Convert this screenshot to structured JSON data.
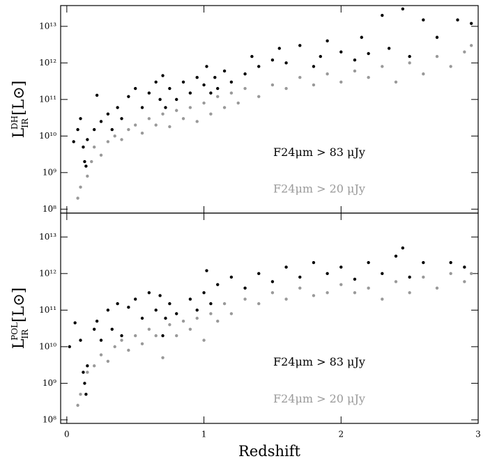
{
  "chart_data": [
    {
      "type": "scatter",
      "log_y": true,
      "xtick_labels": false,
      "ylabel": {
        "base": "L",
        "sub": "IR",
        "sup": "DH",
        "unit": "[L⊙]"
      },
      "xlim": [
        -0.045,
        3
      ],
      "xticks": [
        0,
        1,
        2,
        3
      ],
      "ylim": [
        78000000.0,
        37000000000000.0
      ],
      "yticks": [
        {
          "value": 100000000.0,
          "label": "10⁸"
        },
        {
          "value": 1000000000.0,
          "label": "10⁹"
        },
        {
          "value": 10000000000.0,
          "label": "10¹⁰"
        },
        {
          "value": 100000000000.0,
          "label": "10¹¹"
        },
        {
          "value": 1000000000000.0,
          "label": "10¹²"
        },
        {
          "value": 10000000000000.0,
          "label": "10¹³"
        }
      ],
      "series": [
        {
          "name": "F24μm > 83 μJy",
          "color": "#000000",
          "x": [
            0.05,
            0.08,
            0.1,
            0.12,
            0.13,
            0.14,
            0.15,
            0.2,
            0.22,
            0.25,
            0.3,
            0.33,
            0.37,
            0.4,
            0.45,
            0.5,
            0.55,
            0.6,
            0.65,
            0.68,
            0.7,
            0.72,
            0.75,
            0.8,
            0.85,
            0.9,
            0.95,
            1.0,
            1.02,
            1.05,
            1.08,
            1.1,
            1.15,
            1.2,
            1.3,
            1.35,
            1.4,
            1.5,
            1.55,
            1.6,
            1.7,
            1.8,
            1.85,
            1.9,
            2.0,
            2.1,
            2.15,
            2.2,
            2.3,
            2.35,
            2.45,
            2.5,
            2.6,
            2.7,
            2.85,
            2.95
          ],
          "values": [
            7000000000.0,
            15000000000.0,
            30000000000.0,
            5000000000.0,
            2000000000.0,
            1500000000.0,
            8000000000.0,
            15000000000.0,
            130000000000.0,
            25000000000.0,
            40000000000.0,
            15000000000.0,
            60000000000.0,
            30000000000.0,
            120000000000.0,
            200000000000.0,
            60000000000.0,
            150000000000.0,
            300000000000.0,
            100000000000.0,
            450000000000.0,
            60000000000.0,
            200000000000.0,
            100000000000.0,
            300000000000.0,
            150000000000.0,
            400000000000.0,
            250000000000.0,
            800000000000.0,
            150000000000.0,
            400000000000.0,
            200000000000.0,
            600000000000.0,
            300000000000.0,
            500000000000.0,
            1500000000000.0,
            800000000000.0,
            1200000000000.0,
            2500000000000.0,
            1000000000000.0,
            3000000000000.0,
            800000000000.0,
            1500000000000.0,
            4000000000000.0,
            2000000000000.0,
            1200000000000.0,
            5000000000000.0,
            1800000000000.0,
            20000000000000.0,
            2500000000000.0,
            30000000000000.0,
            1500000000000.0,
            15000000000000.0,
            5000000000000.0,
            15000000000000.0,
            12000000000000.0
          ]
        },
        {
          "name": "F24μm > 20 μJy",
          "color": "#999999",
          "x": [
            0.08,
            0.1,
            0.15,
            0.18,
            0.2,
            0.25,
            0.3,
            0.35,
            0.4,
            0.45,
            0.5,
            0.55,
            0.6,
            0.65,
            0.7,
            0.75,
            0.8,
            0.85,
            0.9,
            0.95,
            1.0,
            1.05,
            1.1,
            1.15,
            1.2,
            1.25,
            1.3,
            1.4,
            1.5,
            1.6,
            1.7,
            1.8,
            1.9,
            2.0,
            2.1,
            2.2,
            2.3,
            2.4,
            2.5,
            2.6,
            2.7,
            2.8,
            2.9,
            2.95
          ],
          "values": [
            200000000.0,
            400000000.0,
            800000000.0,
            2000000000.0,
            5000000000.0,
            3000000000.0,
            7000000000.0,
            10000000000.0,
            8000000000.0,
            15000000000.0,
            20000000000.0,
            12000000000.0,
            30000000000.0,
            20000000000.0,
            40000000000.0,
            18000000000.0,
            50000000000.0,
            30000000000.0,
            60000000000.0,
            25000000000.0,
            80000000000.0,
            40000000000.0,
            120000000000.0,
            60000000000.0,
            150000000000.0,
            80000000000.0,
            200000000000.0,
            120000000000.0,
            250000000000.0,
            200000000000.0,
            400000000000.0,
            250000000000.0,
            500000000000.0,
            300000000000.0,
            600000000000.0,
            400000000000.0,
            800000000000.0,
            300000000000.0,
            1000000000000.0,
            500000000000.0,
            1500000000000.0,
            800000000000.0,
            2000000000000.0,
            3000000000000.0
          ]
        }
      ]
    },
    {
      "type": "scatter",
      "log_y": true,
      "xtick_labels": true,
      "xlabel": "Redshift",
      "ylabel": {
        "base": "L",
        "sub": "IR",
        "sup": "POL",
        "unit": "[L⊙]"
      },
      "xlim": [
        -0.045,
        3
      ],
      "xticks": [
        0,
        1,
        2,
        3
      ],
      "ylim": [
        80000000.0,
        45000000000000.0
      ],
      "yticks": [
        {
          "value": 100000000.0,
          "label": "10⁸"
        },
        {
          "value": 1000000000.0,
          "label": "10⁹"
        },
        {
          "value": 10000000000.0,
          "label": "10¹⁰"
        },
        {
          "value": 100000000000.0,
          "label": "10¹¹"
        },
        {
          "value": 1000000000000.0,
          "label": "10¹²"
        },
        {
          "value": 10000000000000.0,
          "label": "10¹³"
        }
      ],
      "series": [
        {
          "name": "F24μm > 83 μJy",
          "color": "#000000",
          "x": [
            0.02,
            0.06,
            0.1,
            0.12,
            0.13,
            0.14,
            0.15,
            0.2,
            0.22,
            0.25,
            0.3,
            0.33,
            0.37,
            0.4,
            0.45,
            0.5,
            0.55,
            0.6,
            0.65,
            0.68,
            0.7,
            0.72,
            0.75,
            0.8,
            0.9,
            0.95,
            1.0,
            1.02,
            1.05,
            1.1,
            1.2,
            1.3,
            1.4,
            1.5,
            1.6,
            1.7,
            1.8,
            1.9,
            2.0,
            2.1,
            2.2,
            2.3,
            2.4,
            2.45,
            2.5,
            2.6,
            2.8,
            2.9
          ],
          "values": [
            10000000000.0,
            45000000000.0,
            15000000000.0,
            2000000000.0,
            1000000000.0,
            500000000.0,
            3000000000.0,
            30000000000.0,
            50000000000.0,
            15000000000.0,
            100000000000.0,
            30000000000.0,
            150000000000.0,
            20000000000.0,
            120000000000.0,
            200000000000.0,
            60000000000.0,
            300000000000.0,
            100000000000.0,
            250000000000.0,
            20000000000.0,
            60000000000.0,
            150000000000.0,
            80000000000.0,
            200000000000.0,
            100000000000.0,
            300000000000.0,
            1200000000000.0,
            150000000000.0,
            500000000000.0,
            800000000000.0,
            400000000000.0,
            1000000000000.0,
            600000000000.0,
            1500000000000.0,
            800000000000.0,
            2000000000000.0,
            1000000000000.0,
            1500000000000.0,
            700000000000.0,
            2000000000000.0,
            1000000000000.0,
            3000000000000.0,
            5000000000000.0,
            800000000000.0,
            2000000000000.0,
            2000000000000.0,
            1500000000000.0
          ]
        },
        {
          "name": "F24μm > 20 μJy",
          "color": "#999999",
          "x": [
            0.08,
            0.1,
            0.15,
            0.2,
            0.25,
            0.3,
            0.35,
            0.4,
            0.45,
            0.5,
            0.55,
            0.6,
            0.65,
            0.7,
            0.75,
            0.8,
            0.85,
            0.9,
            0.95,
            1.0,
            1.05,
            1.1,
            1.15,
            1.2,
            1.3,
            1.4,
            1.5,
            1.6,
            1.7,
            1.8,
            1.9,
            2.0,
            2.1,
            2.2,
            2.3,
            2.4,
            2.5,
            2.6,
            2.7,
            2.8,
            2.9,
            2.95
          ],
          "values": [
            250000000.0,
            500000000.0,
            2000000000.0,
            3000000000.0,
            6000000000.0,
            4000000000.0,
            10000000000.0,
            15000000000.0,
            8000000000.0,
            20000000000.0,
            12000000000.0,
            30000000000.0,
            20000000000.0,
            5000000000.0,
            40000000000.0,
            20000000000.0,
            50000000000.0,
            30000000000.0,
            60000000000.0,
            15000000000.0,
            80000000000.0,
            50000000000.0,
            150000000000.0,
            80000000000.0,
            200000000000.0,
            150000000000.0,
            300000000000.0,
            200000000000.0,
            400000000000.0,
            250000000000.0,
            300000000000.0,
            500000000000.0,
            300000000000.0,
            400000000000.0,
            200000000000.0,
            600000000000.0,
            300000000000.0,
            800000000000.0,
            400000000000.0,
            1000000000000.0,
            600000000000.0,
            1000000000000.0
          ]
        }
      ]
    }
  ]
}
